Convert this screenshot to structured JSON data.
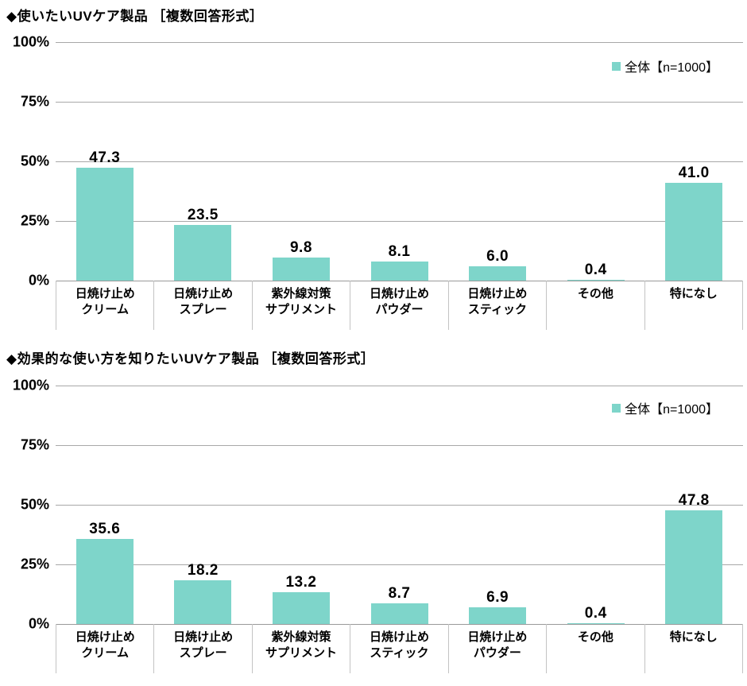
{
  "page": {
    "background": "#ffffff"
  },
  "colors": {
    "bar": "#7ED5CA",
    "gridline": "#a8a8a8",
    "axis_line": "#9a9a9a",
    "category_separator": "#c3c3c3",
    "text": "#000000"
  },
  "chart_data": [
    {
      "type": "bar",
      "title": "◆使いたいUVケア製品 ［複数回答形式］",
      "legend": {
        "label": "全体【n=1000】",
        "swatch_color": "#7ED5CA",
        "position": "top-right"
      },
      "categories": [
        "日焼け止め\nクリーム",
        "日焼け止め\nスプレー",
        "紫外線対策\nサプリメント",
        "日焼け止め\nパウダー",
        "日焼け止め\nスティック",
        "その他",
        "特になし"
      ],
      "values": [
        47.3,
        23.5,
        9.8,
        8.1,
        6.0,
        0.4,
        41.0
      ],
      "value_label_decimals": 1,
      "ylim": [
        0,
        100
      ],
      "yticks": [
        100,
        75,
        50,
        25,
        0
      ],
      "ytick_labels": [
        "100%",
        "75%",
        "50%",
        "25%",
        "0%"
      ],
      "grid": true,
      "xlabel": "",
      "ylabel": ""
    },
    {
      "type": "bar",
      "title": "◆効果的な使い方を知りたいUVケア製品 ［複数回答形式］",
      "legend": {
        "label": "全体【n=1000】",
        "swatch_color": "#7ED5CA",
        "position": "top-right"
      },
      "categories": [
        "日焼け止め\nクリーム",
        "日焼け止め\nスプレー",
        "紫外線対策\nサプリメント",
        "日焼け止め\nスティック",
        "日焼け止め\nパウダー",
        "その他",
        "特になし"
      ],
      "values": [
        35.6,
        18.2,
        13.2,
        8.7,
        6.9,
        0.4,
        47.8
      ],
      "value_label_decimals": 1,
      "ylim": [
        0,
        100
      ],
      "yticks": [
        100,
        75,
        50,
        25,
        0
      ],
      "ytick_labels": [
        "100%",
        "75%",
        "50%",
        "25%",
        "0%"
      ],
      "grid": true,
      "xlabel": "",
      "ylabel": ""
    }
  ]
}
